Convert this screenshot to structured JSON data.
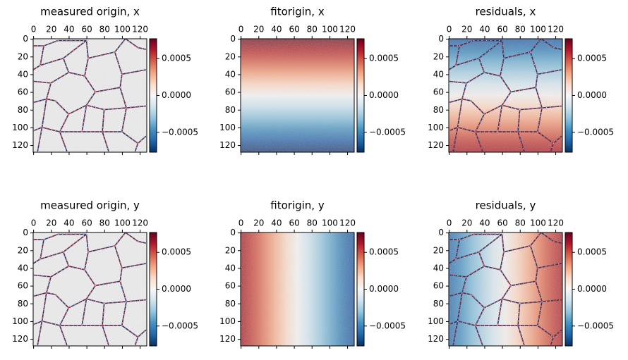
{
  "chart_data": [
    {
      "type": "heatmap",
      "title": "measured origin, x",
      "xlim": [
        -0.5,
        127.5
      ],
      "ylim": [
        127.5,
        -0.5
      ],
      "xticks": [
        0,
        20,
        40,
        60,
        80,
        100,
        120
      ],
      "yticks": [
        0,
        20,
        40,
        60,
        80,
        100,
        120
      ],
      "clim": [
        -0.00077,
        0.00077
      ],
      "cticks": [
        {
          "value": -0.0005,
          "label": "−0.0005"
        },
        {
          "value": 0,
          "label": "0.0000"
        },
        0.0005
      ]
    },
    {
      "type": "heatmap",
      "title": "fitorigin, x",
      "xlim": [
        -0.5,
        127.5
      ],
      "ylim": [
        127.5,
        -0.5
      ],
      "xticks": [
        0,
        20,
        40,
        60,
        80,
        100,
        120
      ],
      "yticks": [
        0,
        20,
        40,
        60,
        80,
        100,
        120
      ],
      "clim": [
        -0.00077,
        0.00077
      ],
      "cticks": [
        {
          "value": -0.0005,
          "label": "−0.0005"
        },
        {
          "value": 0,
          "label": "0.0000"
        },
        0.0005
      ]
    },
    {
      "type": "heatmap",
      "title": "residuals, x",
      "xlim": [
        -0.5,
        127.5
      ],
      "ylim": [
        127.5,
        -0.5
      ],
      "xticks": [
        0,
        20,
        40,
        60,
        80,
        100,
        120
      ],
      "yticks": [
        0,
        20,
        40,
        60,
        80,
        100,
        120
      ],
      "clim": [
        -0.00077,
        0.00077
      ],
      "cticks": [
        {
          "value": -0.0005,
          "label": "−0.0005"
        },
        {
          "value": 0,
          "label": "0.0000"
        },
        0.0005
      ]
    },
    {
      "type": "heatmap",
      "title": "measured origin, y",
      "xlim": [
        -0.5,
        127.5
      ],
      "ylim": [
        127.5,
        -0.5
      ],
      "xticks": [
        0,
        20,
        40,
        60,
        80,
        100,
        120
      ],
      "yticks": [
        0,
        20,
        40,
        60,
        80,
        100,
        120
      ],
      "clim": [
        -0.00077,
        0.00077
      ],
      "cticks": [
        {
          "value": -0.0005,
          "label": "−0.0005"
        },
        {
          "value": 0,
          "label": "0.0000"
        },
        0.0005
      ]
    },
    {
      "type": "heatmap",
      "title": "fitorigin, y",
      "xlim": [
        -0.5,
        127.5
      ],
      "ylim": [
        127.5,
        -0.5
      ],
      "xticks": [
        0,
        20,
        40,
        60,
        80,
        100,
        120
      ],
      "yticks": [
        0,
        20,
        40,
        60,
        80,
        100,
        120
      ],
      "clim": [
        -0.00077,
        0.00077
      ],
      "cticks": [
        {
          "value": -0.0005,
          "label": "−0.0005"
        },
        {
          "value": 0,
          "label": "0.0000"
        },
        0.0005
      ]
    },
    {
      "type": "heatmap",
      "title": "residuals, y",
      "xlim": [
        -0.5,
        127.5
      ],
      "ylim": [
        127.5,
        -0.5
      ],
      "xticks": [
        0,
        20,
        40,
        60,
        80,
        100,
        120
      ],
      "yticks": [
        0,
        20,
        40,
        60,
        80,
        100,
        120
      ],
      "clim": [
        -0.00077,
        0.00077
      ],
      "cticks": [
        {
          "value": -0.0005,
          "label": "−0.0005"
        },
        {
          "value": 0,
          "label": "0.0000"
        },
        0.0005
      ]
    }
  ]
}
